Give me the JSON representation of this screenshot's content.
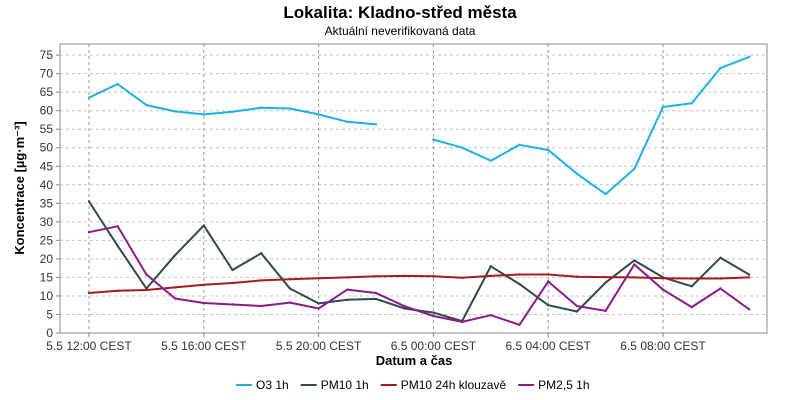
{
  "chart_data": {
    "type": "line",
    "title": "Lokalita: Kladno-střed města",
    "subtitle": "Aktuální neverifikovaná data",
    "xlabel": "Datum a čas",
    "ylabel": "Koncentrace [µg·m⁻³]",
    "ylim": [
      0,
      78
    ],
    "yticks": [
      0,
      5,
      10,
      15,
      20,
      25,
      30,
      35,
      40,
      45,
      50,
      55,
      60,
      65,
      70,
      75
    ],
    "x": [
      "5.5 12:00",
      "5.5 13:00",
      "5.5 14:00",
      "5.5 15:00",
      "5.5 16:00",
      "5.5 17:00",
      "5.5 18:00",
      "5.5 19:00",
      "5.5 20:00",
      "5.5 21:00",
      "5.5 22:00",
      "5.5 23:00",
      "6.5 00:00",
      "6.5 01:00",
      "6.5 02:00",
      "6.5 03:00",
      "6.5 04:00",
      "6.5 05:00",
      "6.5 06:00",
      "6.5 07:00",
      "6.5 08:00",
      "6.5 09:00",
      "6.5 10:00",
      "6.5 11:00"
    ],
    "xticks": [
      {
        "index": 0,
        "label": "5.5 12:00 CEST"
      },
      {
        "index": 4,
        "label": "5.5 16:00 CEST"
      },
      {
        "index": 8,
        "label": "5.5 20:00 CEST"
      },
      {
        "index": 12,
        "label": "6.5 00:00 CEST"
      },
      {
        "index": 16,
        "label": "6.5 04:00 CEST"
      },
      {
        "index": 20,
        "label": "6.5 08:00 CEST"
      }
    ],
    "grid": true,
    "legend_position": "bottom",
    "series": [
      {
        "name": "O3 1h",
        "color": "#1ab2e6",
        "values": [
          63.5,
          67.2,
          61.5,
          59.8,
          59.0,
          59.7,
          60.8,
          60.6,
          59.0,
          57.0,
          56.3,
          null,
          52.2,
          50.0,
          46.5,
          50.8,
          49.4,
          43.0,
          37.5,
          44.3,
          61.0,
          62.0,
          71.5,
          74.5
        ]
      },
      {
        "name": "PM10 1h",
        "color": "#2e4a4a",
        "values": [
          35.5,
          23.5,
          12.0,
          21.0,
          29.0,
          17.0,
          21.5,
          12.0,
          8.0,
          9.0,
          9.2,
          6.6,
          5.5,
          3.2,
          18.0,
          13.2,
          7.5,
          5.8,
          13.6,
          19.6,
          15.0,
          12.6,
          20.3,
          15.8
        ]
      },
      {
        "name": "PM10 24h klouzavě",
        "color": "#a61b1b",
        "values": [
          10.8,
          11.4,
          11.6,
          12.3,
          13.0,
          13.5,
          14.2,
          14.5,
          14.8,
          15.0,
          15.3,
          15.4,
          15.3,
          14.9,
          15.4,
          15.8,
          15.8,
          15.2,
          15.1,
          15.0,
          14.8,
          14.7,
          14.7,
          15.0
        ]
      },
      {
        "name": "PM2,5 1h",
        "color": "#8b1a8b",
        "values": [
          27.2,
          28.8,
          15.8,
          9.3,
          8.1,
          7.7,
          7.3,
          8.2,
          6.6,
          11.7,
          10.8,
          7.2,
          4.6,
          3.0,
          4.8,
          2.2,
          13.9,
          7.3,
          6.0,
          18.5,
          11.7,
          7.0,
          12.0,
          6.4
        ]
      }
    ]
  }
}
